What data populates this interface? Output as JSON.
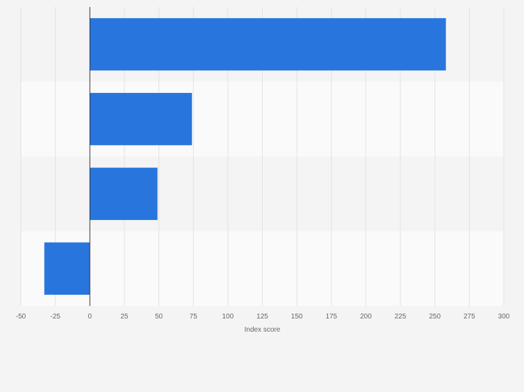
{
  "chart_data": {
    "type": "bar",
    "orientation": "horizontal",
    "categories": [
      "",
      "",
      "",
      ""
    ],
    "values": [
      258,
      74,
      49,
      -33
    ],
    "xlabel": "Index score",
    "ylabel": "",
    "xlim": [
      -50,
      300
    ],
    "xticks": [
      -50,
      -25,
      0,
      25,
      50,
      75,
      100,
      125,
      150,
      175,
      200,
      225,
      250,
      275,
      300
    ],
    "xtick_labels": [
      "-50",
      "-25",
      "0",
      "25",
      "50",
      "75",
      "100",
      "125",
      "150",
      "175",
      "200",
      "225",
      "250",
      "275",
      "300"
    ],
    "grid": true,
    "legend": "none",
    "colors": {
      "bar": "#2876dd",
      "background": "#f4f4f4",
      "band_alt": "#fafafa",
      "grid": "#e2e2e2",
      "zero_line": "#333333",
      "tick_text": "#666666"
    }
  }
}
